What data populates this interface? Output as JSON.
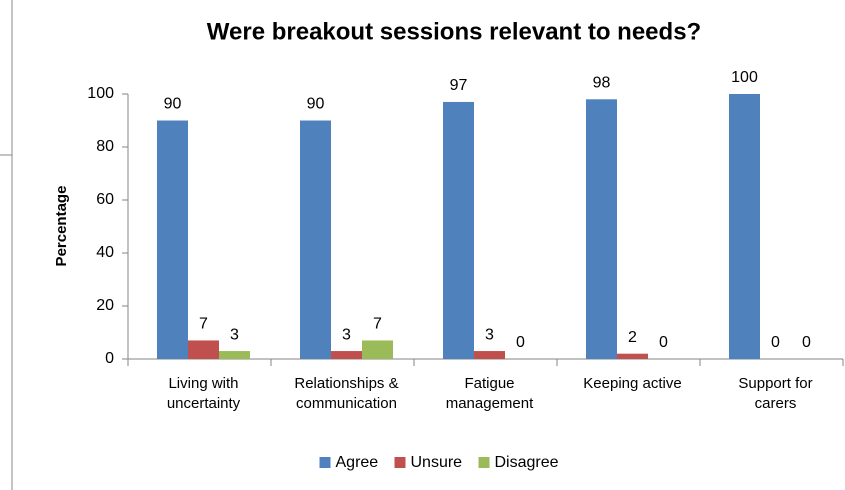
{
  "chart_data": {
    "type": "bar",
    "title": "Were breakout sessions relevant to needs?",
    "y_label": "Percentage",
    "categories": [
      "Living with\nuncertainty",
      "Relationships &\ncommunication",
      "Fatigue\nmanagement",
      "Keeping active",
      "Support for\ncarers"
    ],
    "series": [
      {
        "name": "Agree",
        "color": "#4f81bd",
        "values": [
          90,
          90,
          97,
          98,
          100
        ]
      },
      {
        "name": "Unsure",
        "color": "#c0504d",
        "values": [
          7,
          3,
          3,
          2,
          0
        ]
      },
      {
        "name": "Disagree",
        "color": "#9bbb59",
        "values": [
          3,
          7,
          0,
          0,
          0
        ]
      }
    ],
    "ylim": [
      0,
      100
    ],
    "yticks": [
      0,
      20,
      40,
      60,
      80,
      100
    ],
    "grid": false,
    "legend": "bottom"
  }
}
